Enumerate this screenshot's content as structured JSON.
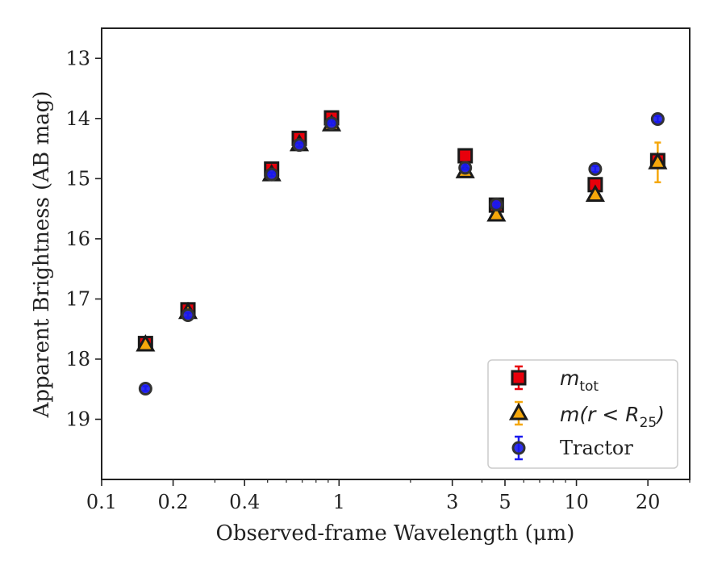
{
  "chart_data": {
    "type": "scatter",
    "xlabel": "Observed-frame Wavelength (μm)",
    "ylabel": "Apparent Brightness (AB mag)",
    "xscale": "log",
    "xlim": [
      0.1,
      30
    ],
    "ylim": [
      20.0,
      12.5
    ],
    "y_inverted": true,
    "x_ticks": [
      0.1,
      0.2,
      0.4,
      1,
      3,
      5,
      10,
      20
    ],
    "x_tick_labels": [
      "0.1",
      "0.2",
      "0.4",
      "1",
      "3",
      "5",
      "10",
      "20"
    ],
    "y_ticks": [
      13,
      14,
      15,
      16,
      17,
      18,
      19
    ],
    "y_tick_labels": [
      "13",
      "14",
      "15",
      "16",
      "17",
      "18",
      "19"
    ],
    "legend_position": "lower-right",
    "series": [
      {
        "name": "m_tot",
        "legend_main": "m",
        "legend_sub": "tot",
        "marker": "square",
        "color": "#e8000b",
        "edgecolor": "#1a1a1a",
        "errcolor": "#e8000b",
        "points": [
          {
            "x": 0.153,
            "y": 17.74,
            "err": 0.05
          },
          {
            "x": 0.231,
            "y": 17.18,
            "err": 0.05
          },
          {
            "x": 0.52,
            "y": 14.84,
            "err": 0.05
          },
          {
            "x": 0.68,
            "y": 14.33,
            "err": 0.05
          },
          {
            "x": 0.93,
            "y": 13.99,
            "err": 0.05
          },
          {
            "x": 3.4,
            "y": 14.62,
            "err": 0.04
          },
          {
            "x": 4.6,
            "y": 15.44,
            "err": 0.04
          },
          {
            "x": 12.0,
            "y": 15.1,
            "err": 0.05
          },
          {
            "x": 22.0,
            "y": 14.7,
            "err": 0.05
          }
        ]
      },
      {
        "name": "m(r < R_25)",
        "legend_main": "m(r < R",
        "legend_sub": "25",
        "legend_tail": ")",
        "marker": "triangle",
        "color": "#f5a70b",
        "edgecolor": "#1a1a1a",
        "errcolor": "#f5a70b",
        "points": [
          {
            "x": 0.153,
            "y": 17.76,
            "err": 0.04
          },
          {
            "x": 0.231,
            "y": 17.22,
            "err": 0.04
          },
          {
            "x": 0.52,
            "y": 14.93,
            "err": 0.04
          },
          {
            "x": 0.68,
            "y": 14.43,
            "err": 0.04
          },
          {
            "x": 0.93,
            "y": 14.1,
            "err": 0.04
          },
          {
            "x": 3.4,
            "y": 14.88,
            "err": 0.04
          },
          {
            "x": 4.6,
            "y": 15.6,
            "err": 0.04
          },
          {
            "x": 12.0,
            "y": 15.27,
            "err": 0.05
          },
          {
            "x": 22.0,
            "y": 14.73,
            "err": 0.33
          }
        ]
      },
      {
        "name": "Tractor",
        "legend_main": "Tractor",
        "marker": "circle",
        "color": "#1a1aee",
        "edgecolor": "#333333",
        "errcolor": "#1a1aee",
        "points": [
          {
            "x": 0.153,
            "y": 18.49,
            "err": 0.04
          },
          {
            "x": 0.231,
            "y": 17.27,
            "err": 0.04
          },
          {
            "x": 0.52,
            "y": 14.93,
            "err": 0.03
          },
          {
            "x": 0.68,
            "y": 14.44,
            "err": 0.03
          },
          {
            "x": 0.93,
            "y": 14.08,
            "err": 0.03
          },
          {
            "x": 3.4,
            "y": 14.82,
            "err": 0.03
          },
          {
            "x": 4.6,
            "y": 15.43,
            "err": 0.03
          },
          {
            "x": 12.0,
            "y": 14.84,
            "err": 0.05
          },
          {
            "x": 22.0,
            "y": 14.01,
            "err": 0.05
          }
        ]
      }
    ]
  }
}
